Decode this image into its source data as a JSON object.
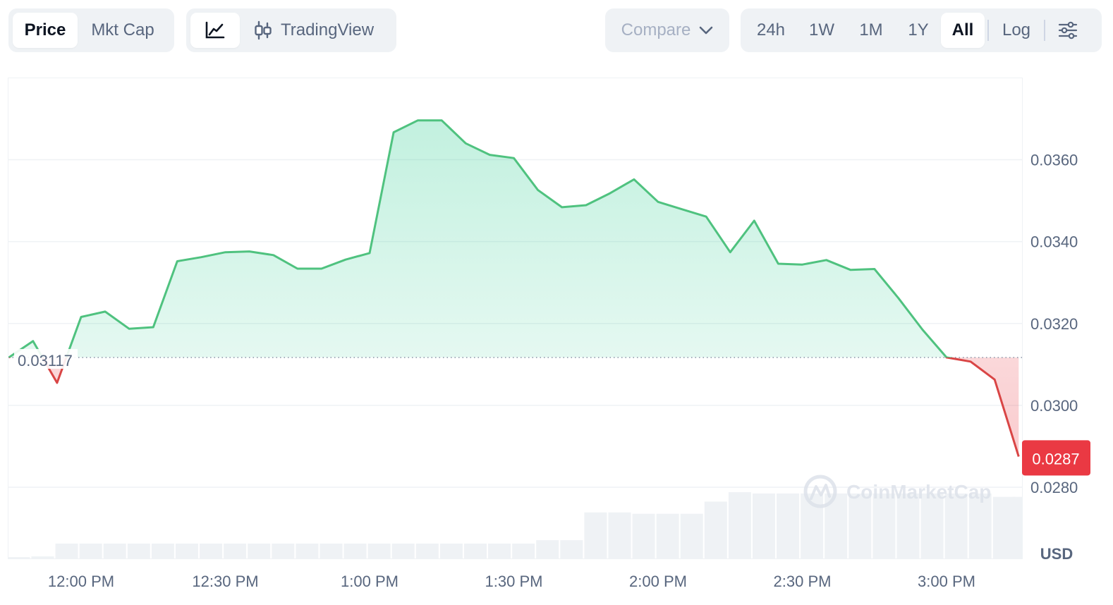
{
  "toolbar": {
    "metric_tabs": [
      {
        "label": "Price",
        "active": true
      },
      {
        "label": "Mkt Cap",
        "active": false
      }
    ],
    "view_tabs": [
      {
        "icon": "line-chart-icon",
        "active": true
      },
      {
        "icon": "candlestick-icon",
        "label": "TradingView",
        "active": false
      }
    ],
    "compare_label": "Compare",
    "range_tabs": [
      {
        "label": "24h",
        "active": false
      },
      {
        "label": "1W",
        "active": false
      },
      {
        "label": "1M",
        "active": false
      },
      {
        "label": "1Y",
        "active": false
      },
      {
        "label": "All",
        "active": true
      }
    ],
    "log_label": "Log",
    "settings_icon": "sliders-icon"
  },
  "colors": {
    "up": "#16c784",
    "up_line": "#4fc27f",
    "down": "#ea3943",
    "down_line": "#d94545",
    "grid": "#eff2f5",
    "label": "#58667e"
  },
  "chart_data": {
    "type": "area",
    "currency": "USD",
    "reference_price": 0.03117,
    "reference_label": "0.03117",
    "current_price": 0.0287,
    "current_label": "0.0287",
    "y_ticks": [
      "0.0280",
      "0.0300",
      "0.0320",
      "0.0340",
      "0.0360"
    ],
    "y_tick_values": [
      0.028,
      0.03,
      0.032,
      0.034,
      0.036
    ],
    "ylim": [
      0.02775,
      0.03805
    ],
    "x_tick_labels": [
      "12:00 PM",
      "12:30 PM",
      "1:00 PM",
      "1:30 PM",
      "2:00 PM",
      "2:30 PM",
      "3:00 PM"
    ],
    "x_tick_minutes": [
      0,
      30,
      60,
      90,
      120,
      150,
      180
    ],
    "xlim_minutes": [
      -15,
      196
    ],
    "price_series": {
      "minutes": [
        -15,
        -10,
        -5,
        0,
        5,
        10,
        15,
        20,
        25,
        30,
        35,
        40,
        45,
        50,
        55,
        60,
        65,
        70,
        75,
        80,
        85,
        90,
        95,
        100,
        105,
        110,
        115,
        120,
        125,
        130,
        135,
        140,
        145,
        150,
        155,
        160,
        165,
        170,
        175,
        180,
        185,
        190,
        195
      ],
      "values": [
        0.03117,
        0.03157,
        0.03055,
        0.03216,
        0.03229,
        0.03187,
        0.03191,
        0.03352,
        0.03362,
        0.03374,
        0.03376,
        0.03367,
        0.03334,
        0.03334,
        0.03356,
        0.03372,
        0.03667,
        0.03696,
        0.03696,
        0.0364,
        0.03612,
        0.03604,
        0.03526,
        0.03484,
        0.03489,
        0.03518,
        0.03552,
        0.03497,
        0.03479,
        0.03461,
        0.03374,
        0.03451,
        0.03346,
        0.03344,
        0.03355,
        0.03331,
        0.03333,
        0.03262,
        0.03185,
        0.03117,
        0.03107,
        0.03063,
        0.02875
      ]
    },
    "volume_series": {
      "minutes": [
        -13,
        -8,
        -3,
        2,
        7,
        12,
        17,
        22,
        27,
        32,
        37,
        42,
        47,
        52,
        57,
        62,
        67,
        72,
        77,
        82,
        87,
        92,
        97,
        102,
        107,
        112,
        117,
        122,
        127,
        132,
        137,
        142,
        147,
        152,
        157,
        162,
        167,
        172,
        177,
        182,
        187,
        192,
        196
      ],
      "relative_values": [
        0.02,
        0.03,
        0.22,
        0.22,
        0.22,
        0.22,
        0.22,
        0.22,
        0.22,
        0.22,
        0.22,
        0.22,
        0.22,
        0.22,
        0.22,
        0.22,
        0.22,
        0.22,
        0.22,
        0.22,
        0.22,
        0.22,
        0.27,
        0.27,
        0.68,
        0.68,
        0.66,
        0.66,
        0.66,
        0.84,
        0.98,
        0.96,
        0.96,
        0.96,
        0.96,
        0.96,
        0.96,
        0.96,
        0.96,
        0.96,
        0.96,
        0.91,
        0.91
      ]
    }
  },
  "watermark": {
    "text": "CoinMarketCap",
    "icon": "coinmarketcap-logo-icon"
  }
}
